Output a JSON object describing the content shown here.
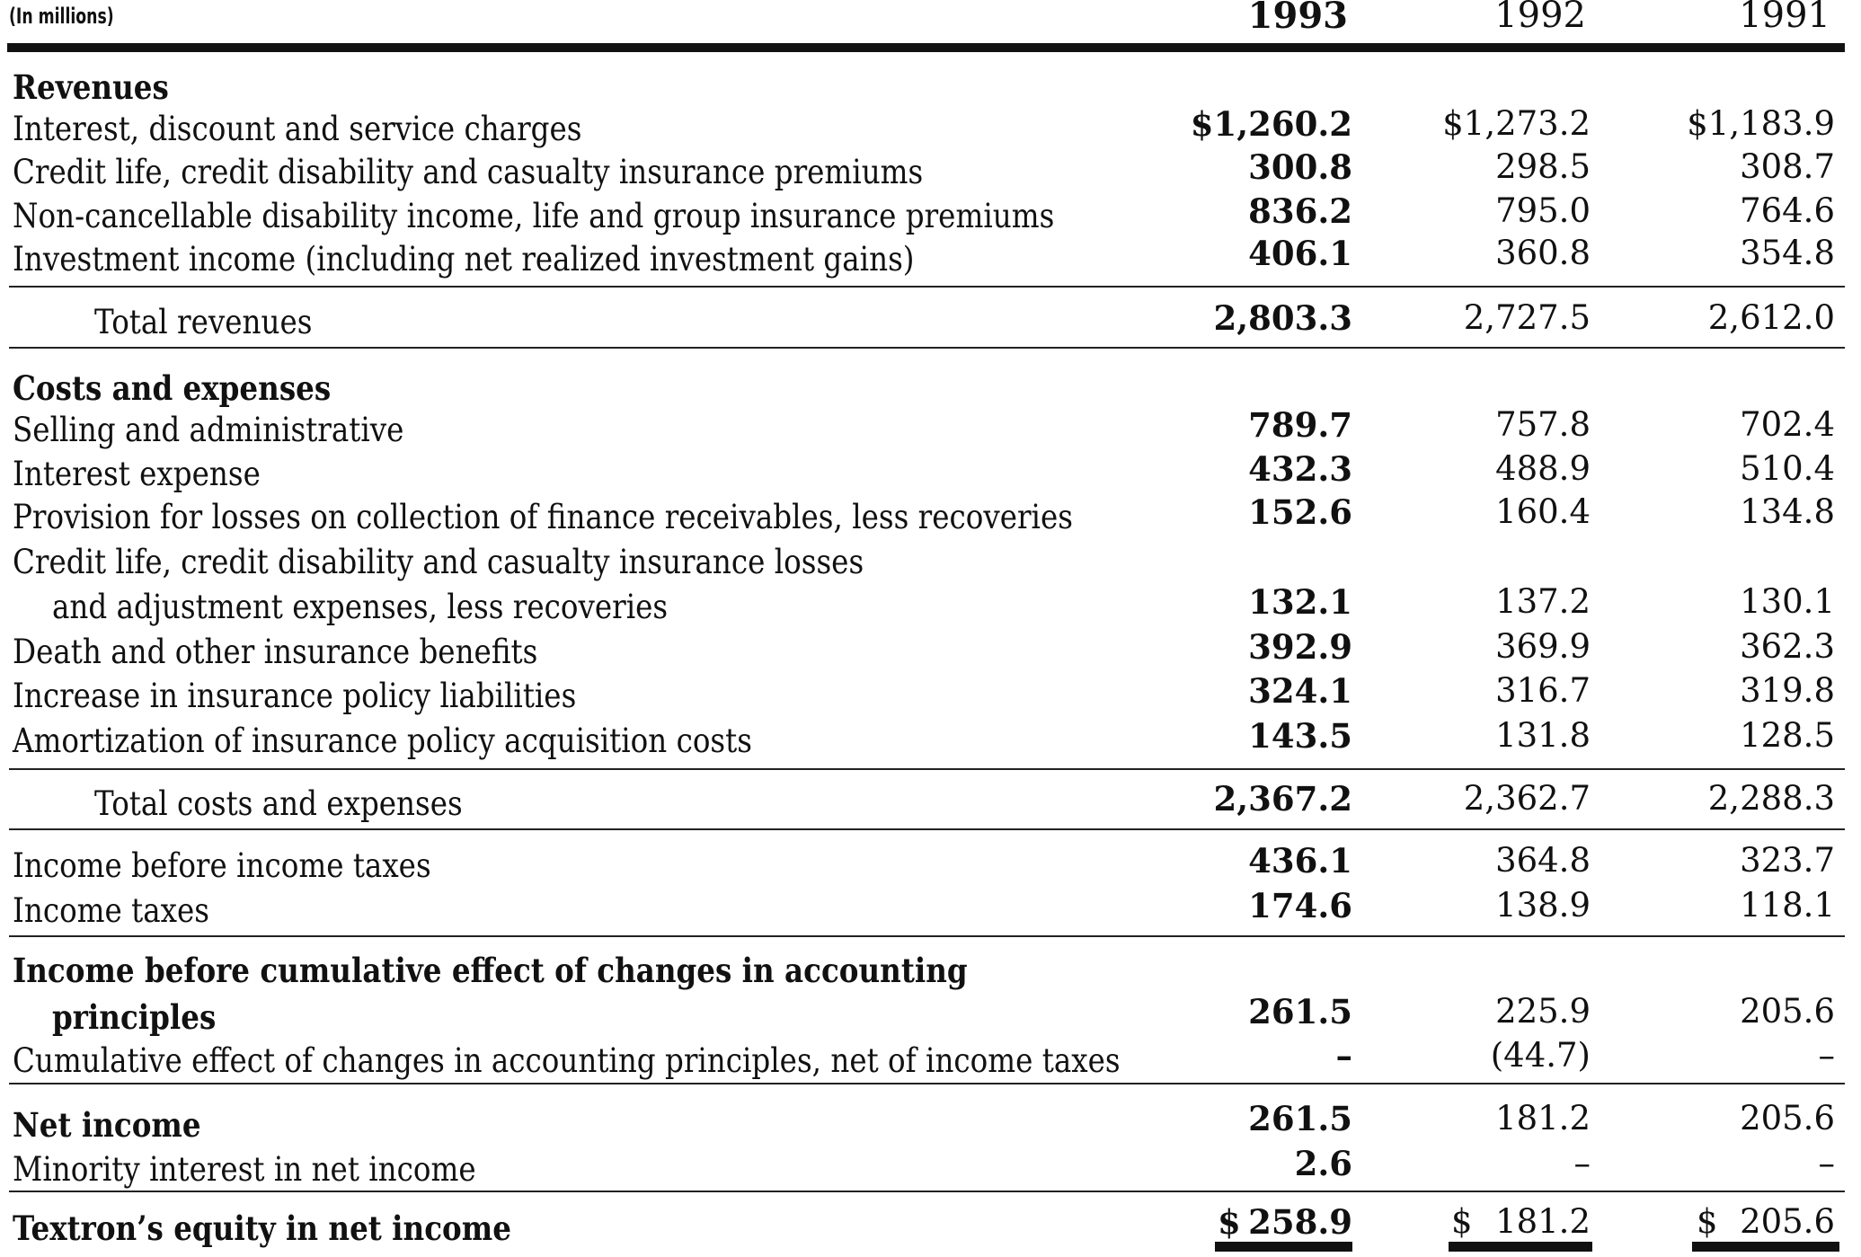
{
  "units_label": "(In millions)",
  "years": [
    "1993",
    "1992",
    "1991"
  ],
  "rows": [
    {
      "label": "Revenues",
      "v": [
        "",
        "",
        ""
      ]
    },
    {
      "label": "Interest, discount and service charges",
      "v": [
        "$1,260.2",
        "$1,273.2",
        "$1,183.9"
      ]
    },
    {
      "label": "Credit life, credit disability and casualty insurance premiums",
      "v": [
        "300.8",
        "298.5",
        "308.7"
      ]
    },
    {
      "label": "Non-cancellable disability income, life and group insurance premiums",
      "v": [
        "836.2",
        "795.0",
        "764.6"
      ]
    },
    {
      "label": "Investment income (including net realized investment gains)",
      "v": [
        "406.1",
        "360.8",
        "354.8"
      ]
    },
    {
      "label": "Total revenues",
      "v": [
        "2,803.3",
        "2,727.5",
        "2,612.0"
      ]
    },
    {
      "label": "Costs and expenses",
      "v": [
        "",
        "",
        ""
      ]
    },
    {
      "label": "Selling and administrative",
      "v": [
        "789.7",
        "757.8",
        "702.4"
      ]
    },
    {
      "label": "Interest expense",
      "v": [
        "432.3",
        "488.9",
        "510.4"
      ]
    },
    {
      "label": "Provision for losses on collection of finance receivables, less recoveries",
      "v": [
        "152.6",
        "160.4",
        "134.8"
      ]
    },
    {
      "label": "Credit life, credit disability and casualty insurance losses",
      "v": [
        "",
        "",
        ""
      ]
    },
    {
      "label": "and adjustment expenses, less recoveries",
      "v": [
        "132.1",
        "137.2",
        "130.1"
      ]
    },
    {
      "label": "Death and other insurance benefits",
      "v": [
        "392.9",
        "369.9",
        "362.3"
      ]
    },
    {
      "label": "Increase in insurance policy liabilities",
      "v": [
        "324.1",
        "316.7",
        "319.8"
      ]
    },
    {
      "label": "Amortization of insurance policy acquisition costs",
      "v": [
        "143.5",
        "131.8",
        "128.5"
      ]
    },
    {
      "label": "Total costs and expenses",
      "v": [
        "2,367.2",
        "2,362.7",
        "2,288.3"
      ]
    },
    {
      "label": "Income before income taxes",
      "v": [
        "436.1",
        "364.8",
        "323.7"
      ]
    },
    {
      "label": "Income taxes",
      "v": [
        "174.6",
        "138.9",
        "118.1"
      ]
    },
    {
      "label": "Income before cumulative effect of changes in accounting",
      "v": [
        "",
        "",
        ""
      ]
    },
    {
      "label": "principles",
      "v": [
        "261.5",
        "225.9",
        "205.6"
      ]
    },
    {
      "label": "Cumulative effect of changes in accounting principles, net of income taxes",
      "v": [
        "–",
        "(44.7)",
        "–"
      ]
    },
    {
      "label": "Net income",
      "v": [
        "261.5",
        "181.2",
        "205.6"
      ]
    },
    {
      "label": "Minority interest in net income",
      "v": [
        "2.6",
        "–",
        "–"
      ]
    },
    {
      "label": "Textron’s equity in net income",
      "v": [
        "258.9",
        "181.2",
        "205.6"
      ]
    }
  ],
  "currency_symbol": "$"
}
